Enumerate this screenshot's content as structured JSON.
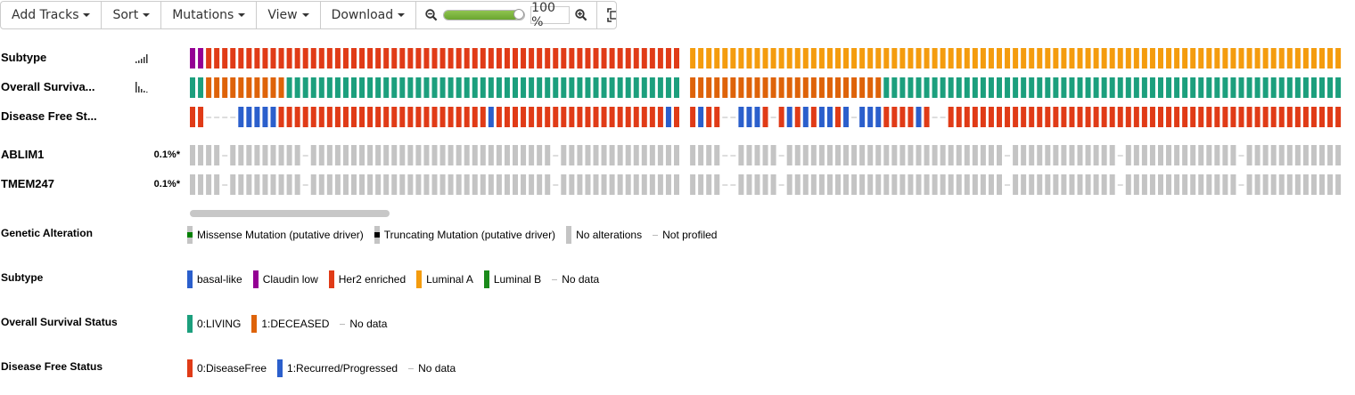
{
  "toolbar": {
    "add_tracks": "Add Tracks",
    "sort": "Sort",
    "mutations": "Mutations",
    "view": "View",
    "download": "Download",
    "zoom_value": "100 %",
    "zoom_level": 0.93
  },
  "tracks": {
    "subtype": {
      "label": "Subtype"
    },
    "os": {
      "label": "Overall Surviva..."
    },
    "dfs": {
      "label": "Disease Free St..."
    },
    "ablim1": {
      "label": "ABLIM1",
      "pct": "0.1%*"
    },
    "tmem247": {
      "label": "TMEM247",
      "pct": "0.1%*"
    }
  },
  "colors": {
    "basal_like": "#2b5fcc",
    "claudin_low": "#940094",
    "her2": "#e03b17",
    "luminal_a": "#f49c0e",
    "luminal_b": "#1b8b1b",
    "living": "#1c9f7d",
    "deceased": "#de6309",
    "disease_free": "#e03b17",
    "recurred": "#2b5fcc",
    "no_alteration": "#c4c4c4",
    "missense": "#008000",
    "truncating": "#000000"
  },
  "legend": {
    "genetic": {
      "title": "Genetic Alteration",
      "items": [
        "Missense Mutation (putative driver)",
        "Truncating Mutation (putative driver)",
        "No alterations",
        "Not profiled"
      ]
    },
    "subtype": {
      "title": "Subtype",
      "items": [
        "basal-like",
        "Claudin low",
        "Her2 enriched",
        "Luminal A",
        "Luminal B",
        "No data"
      ]
    },
    "os": {
      "title": "Overall Survival Status",
      "items": [
        "0:LIVING",
        "1:DECEASED",
        "No data"
      ]
    },
    "dfs": {
      "title": "Disease Free Status",
      "items": [
        "0:DiseaseFree",
        "1:Recurred/Progressed",
        "No data"
      ]
    }
  }
}
